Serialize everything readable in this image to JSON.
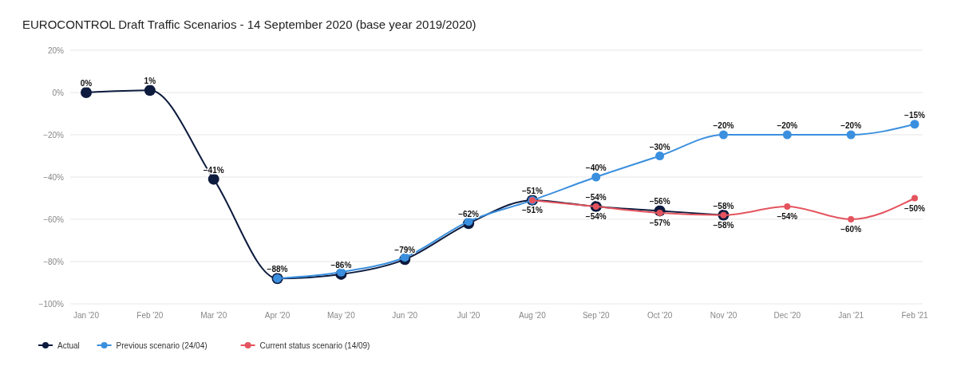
{
  "chart_data": {
    "type": "line",
    "title": "EUROCONTROL Draft Traffic Scenarios - 14 September 2020 (base year 2019/2020)",
    "categories": [
      "Jan '20",
      "Feb '20",
      "Mar '20",
      "Apr '20",
      "May '20",
      "Jun '20",
      "Jul '20",
      "Aug '20",
      "Sep '20",
      "Oct '20",
      "Nov '20",
      "Dec '20",
      "Jan '21",
      "Feb '21"
    ],
    "series": [
      {
        "name": "Actual",
        "color": "#0d1b3e",
        "values": [
          0,
          1,
          -41,
          -88,
          -86,
          -79,
          -62,
          -51,
          -54,
          -56,
          -58,
          null,
          null,
          null
        ],
        "value_labels": [
          "0%",
          "1%",
          "−41%",
          "−88%",
          "−86%",
          "−79%",
          "−62%",
          "−51%",
          "−54%",
          "−56%",
          "−58%",
          null,
          null,
          null
        ]
      },
      {
        "name": "Previous scenario (24/04)",
        "color": "#3a8fde",
        "values": [
          null,
          null,
          null,
          -88,
          -85,
          -78,
          -61,
          -51,
          -40,
          -30,
          -20,
          -20,
          -20,
          -15
        ],
        "value_labels": [
          null,
          null,
          null,
          null,
          null,
          null,
          null,
          null,
          "−40%",
          "−30%",
          "−20%",
          "−20%",
          "−20%",
          "−15%"
        ]
      },
      {
        "name": "Current status scenario (14/09)",
        "color": "#e4545e",
        "values": [
          null,
          null,
          null,
          null,
          null,
          null,
          null,
          -51,
          -54,
          -57,
          -58,
          -54,
          -60,
          -50
        ],
        "value_labels": [
          null,
          null,
          null,
          null,
          null,
          null,
          null,
          "−51%",
          "−54%",
          "−57%",
          "−58%",
          "−54%",
          "−60%",
          "−50%"
        ]
      }
    ],
    "ylim": [
      -100,
      20
    ],
    "yticks": [
      {
        "value": -100,
        "label": "−100%"
      },
      {
        "value": -80,
        "label": "−80%"
      },
      {
        "value": -60,
        "label": "−60%"
      },
      {
        "value": -40,
        "label": "−40%"
      },
      {
        "value": -20,
        "label": "−20%"
      },
      {
        "value": 0,
        "label": "0%"
      },
      {
        "value": 20,
        "label": "20%"
      }
    ],
    "grid": "y",
    "legend": "bottom left",
    "marker": "circle"
  }
}
